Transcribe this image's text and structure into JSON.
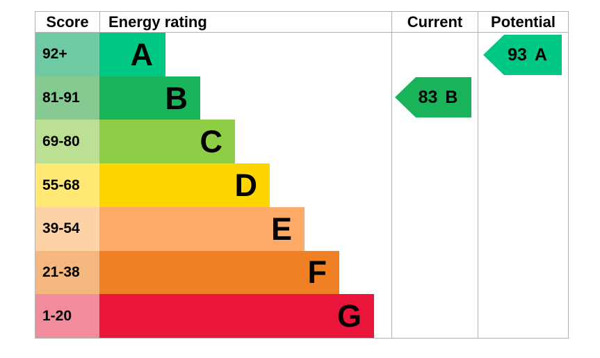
{
  "table": {
    "headers": {
      "score": "Score",
      "energy_rating": "Energy rating",
      "current": "Current",
      "potential": "Potential"
    },
    "bands": [
      {
        "score": "92+",
        "letter": "A",
        "color": "#00c781",
        "tint": "#6fc9a2"
      },
      {
        "score": "81-91",
        "letter": "B",
        "color": "#19b459",
        "tint": "#85ca90"
      },
      {
        "score": "69-80",
        "letter": "C",
        "color": "#8dce46",
        "tint": "#bce093"
      },
      {
        "score": "55-68",
        "letter": "D",
        "color": "#ffd500",
        "tint": "#ffe873"
      },
      {
        "score": "39-54",
        "letter": "E",
        "color": "#fcaa65",
        "tint": "#fdd2a4"
      },
      {
        "score": "21-38",
        "letter": "F",
        "color": "#ef8023",
        "tint": "#f4b77d"
      },
      {
        "score": "1-20",
        "letter": "G",
        "color": "#e9153b",
        "tint": "#f18c9d"
      }
    ],
    "current": {
      "value": "83",
      "letter": "B",
      "color": "#19b459"
    },
    "potential": {
      "value": "93",
      "letter": "A",
      "color": "#00c781"
    }
  },
  "chart_data": {
    "type": "bar",
    "title": "Energy rating",
    "categories": [
      "A",
      "B",
      "C",
      "D",
      "E",
      "F",
      "G"
    ],
    "score_ranges": [
      "92+",
      "81-91",
      "69-80",
      "55-68",
      "39-54",
      "21-38",
      "1-20"
    ],
    "values": [
      95,
      145,
      195,
      245,
      295,
      345,
      395
    ],
    "band_colors": [
      "#00c781",
      "#19b459",
      "#8dce46",
      "#ffd500",
      "#fcaa65",
      "#ef8023",
      "#e9153b"
    ],
    "columns": [
      "Score",
      "Energy rating",
      "Current",
      "Potential"
    ],
    "current": {
      "score": 83,
      "rating": "B"
    },
    "potential": {
      "score": 93,
      "rating": "A"
    },
    "legend_position": "none",
    "grid": false,
    "border_color": "#b3b3b3"
  }
}
